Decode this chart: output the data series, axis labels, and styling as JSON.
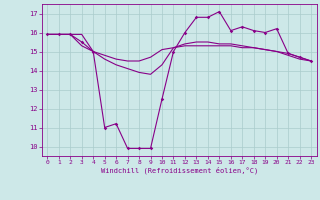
{
  "bg_color": "#cde8e8",
  "grid_color": "#aacccc",
  "line_color": "#880088",
  "xlabel": "Windchill (Refroidissement éolien,°C)",
  "xlim": [
    -0.5,
    23.5
  ],
  "ylim": [
    9.5,
    17.5
  ],
  "yticks": [
    10,
    11,
    12,
    13,
    14,
    15,
    16,
    17
  ],
  "xticks": [
    0,
    1,
    2,
    3,
    4,
    5,
    6,
    7,
    8,
    9,
    10,
    11,
    12,
    13,
    14,
    15,
    16,
    17,
    18,
    19,
    20,
    21,
    22,
    23
  ],
  "series1_x": [
    0,
    1,
    2,
    3,
    4,
    5,
    6,
    7,
    8,
    9,
    10,
    11,
    12,
    13,
    14,
    15,
    16,
    17,
    18,
    19,
    20,
    21,
    22,
    23
  ],
  "series1_y": [
    15.9,
    15.9,
    15.9,
    15.9,
    15.0,
    14.8,
    14.6,
    14.5,
    14.5,
    14.7,
    15.1,
    15.2,
    15.3,
    15.3,
    15.3,
    15.3,
    15.3,
    15.2,
    15.2,
    15.1,
    15.0,
    14.9,
    14.7,
    14.5
  ],
  "series2_x": [
    0,
    1,
    2,
    3,
    4,
    5,
    6,
    7,
    8,
    9,
    10,
    11,
    12,
    13,
    14,
    15,
    16,
    17,
    18,
    19,
    20,
    21,
    22,
    23
  ],
  "series2_y": [
    15.9,
    15.9,
    15.9,
    15.5,
    15.0,
    11.0,
    11.2,
    9.9,
    9.9,
    9.9,
    12.5,
    15.0,
    16.0,
    16.8,
    16.8,
    17.1,
    16.1,
    16.3,
    16.1,
    16.0,
    16.2,
    14.9,
    14.7,
    14.5
  ],
  "series3_x": [
    0,
    1,
    2,
    3,
    4,
    5,
    6,
    7,
    8,
    9,
    10,
    11,
    12,
    13,
    14,
    15,
    16,
    17,
    18,
    19,
    20,
    21,
    22,
    23
  ],
  "series3_y": [
    15.9,
    15.9,
    15.9,
    15.3,
    15.0,
    14.6,
    14.3,
    14.1,
    13.9,
    13.8,
    14.3,
    15.2,
    15.4,
    15.5,
    15.5,
    15.4,
    15.4,
    15.3,
    15.2,
    15.1,
    15.0,
    14.8,
    14.6,
    14.5
  ]
}
